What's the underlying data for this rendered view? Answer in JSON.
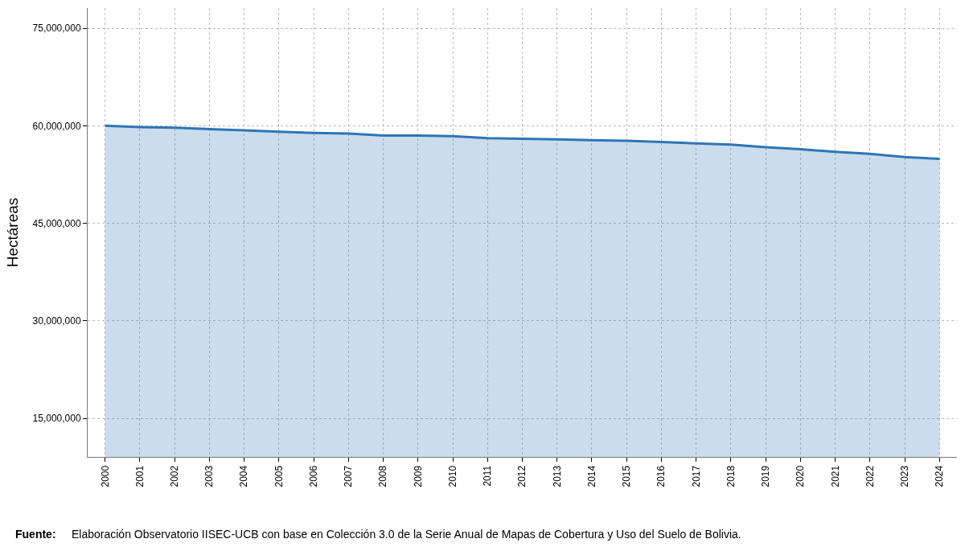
{
  "chart_data": {
    "type": "area",
    "ylabel": "Hectáreas",
    "categories": [
      "2000",
      "2001",
      "2002",
      "2003",
      "2004",
      "2005",
      "2006",
      "2007",
      "2008",
      "2009",
      "2010",
      "2011",
      "2012",
      "2013",
      "2014",
      "2015",
      "2016",
      "2017",
      "2018",
      "2019",
      "2020",
      "2021",
      "2022",
      "2023",
      "2024"
    ],
    "series": [
      {
        "color": "#2e75b6",
        "values": [
          60000000,
          59800000,
          59700000,
          59500000,
          59300000,
          59100000,
          58900000,
          58800000,
          58500000,
          58500000,
          58400000,
          58100000,
          58000000,
          57900000,
          57800000,
          57700000,
          57500000,
          57300000,
          57100000,
          56700000,
          56400000,
          56000000,
          55700000,
          55200000,
          54900000
        ]
      }
    ],
    "ylim": [
      9100000,
      78100000
    ],
    "yticks": [
      {
        "value": 15000000,
        "label": "15,000,000"
      },
      {
        "value": 30000000,
        "label": "30,000,000"
      },
      {
        "value": 45000000,
        "label": "45,000,000"
      },
      {
        "value": 60000000,
        "label": "60,000,000"
      },
      {
        "value": 75000000,
        "label": "75,000,000"
      }
    ],
    "grid": true,
    "line_style": "solid",
    "marker": "none",
    "annotations": [
      "Fuente:",
      "Elaboración Observatorio IISEC-UCB con base en Colección 3.0 de la Serie Anual de Mapas de Cobertura y Uso del Suelo de Bolivia."
    ]
  }
}
